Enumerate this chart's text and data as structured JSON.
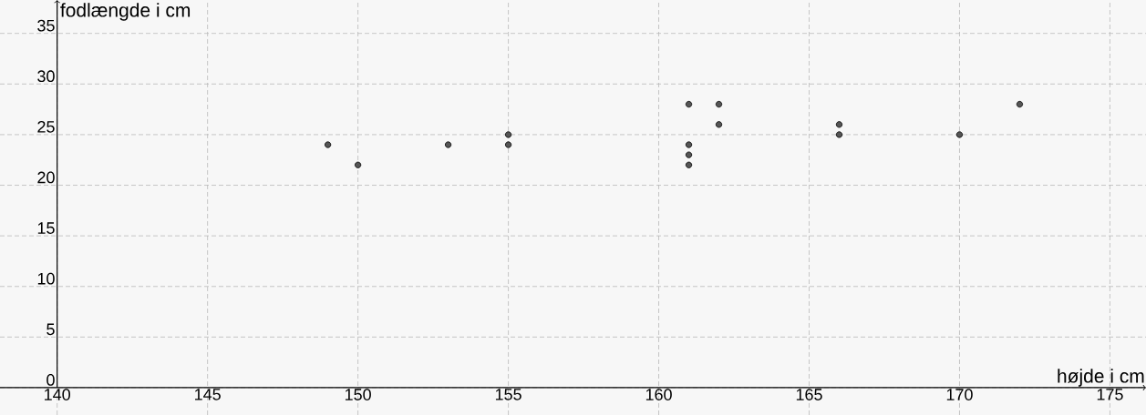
{
  "chart_data": {
    "type": "scatter",
    "xlabel": "højde i cm",
    "ylabel": "fodlængde i cm",
    "x": [
      149,
      150,
      153,
      155,
      155,
      161,
      161,
      161,
      161,
      162,
      162,
      166,
      166,
      170,
      172
    ],
    "values": [
      24,
      22,
      24,
      25,
      24,
      28,
      24,
      23,
      22,
      28,
      26,
      26,
      25,
      25,
      28
    ],
    "color": "#555555",
    "grid": true,
    "xlim": [
      138.1,
      176.2
    ],
    "ylim": [
      -2.7,
      38.3
    ],
    "xticks": [
      140,
      145,
      150,
      155,
      160,
      165,
      170,
      175
    ],
    "yticks": [
      0,
      5,
      10,
      15,
      20,
      25,
      30,
      35
    ]
  }
}
